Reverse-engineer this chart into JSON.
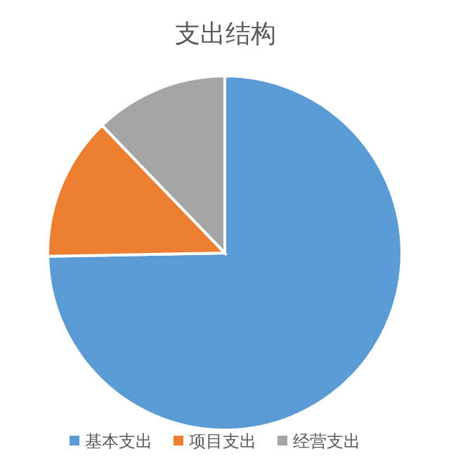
{
  "chart_data": {
    "type": "pie",
    "title": "支出结构",
    "categories": [
      "基本支出",
      "项目支出",
      "经营支出"
    ],
    "values": [
      74.7,
      13.1,
      12.2
    ],
    "colors": [
      "#5b9bd5",
      "#ed7d31",
      "#a5a5a5"
    ],
    "legend": "bottom"
  }
}
